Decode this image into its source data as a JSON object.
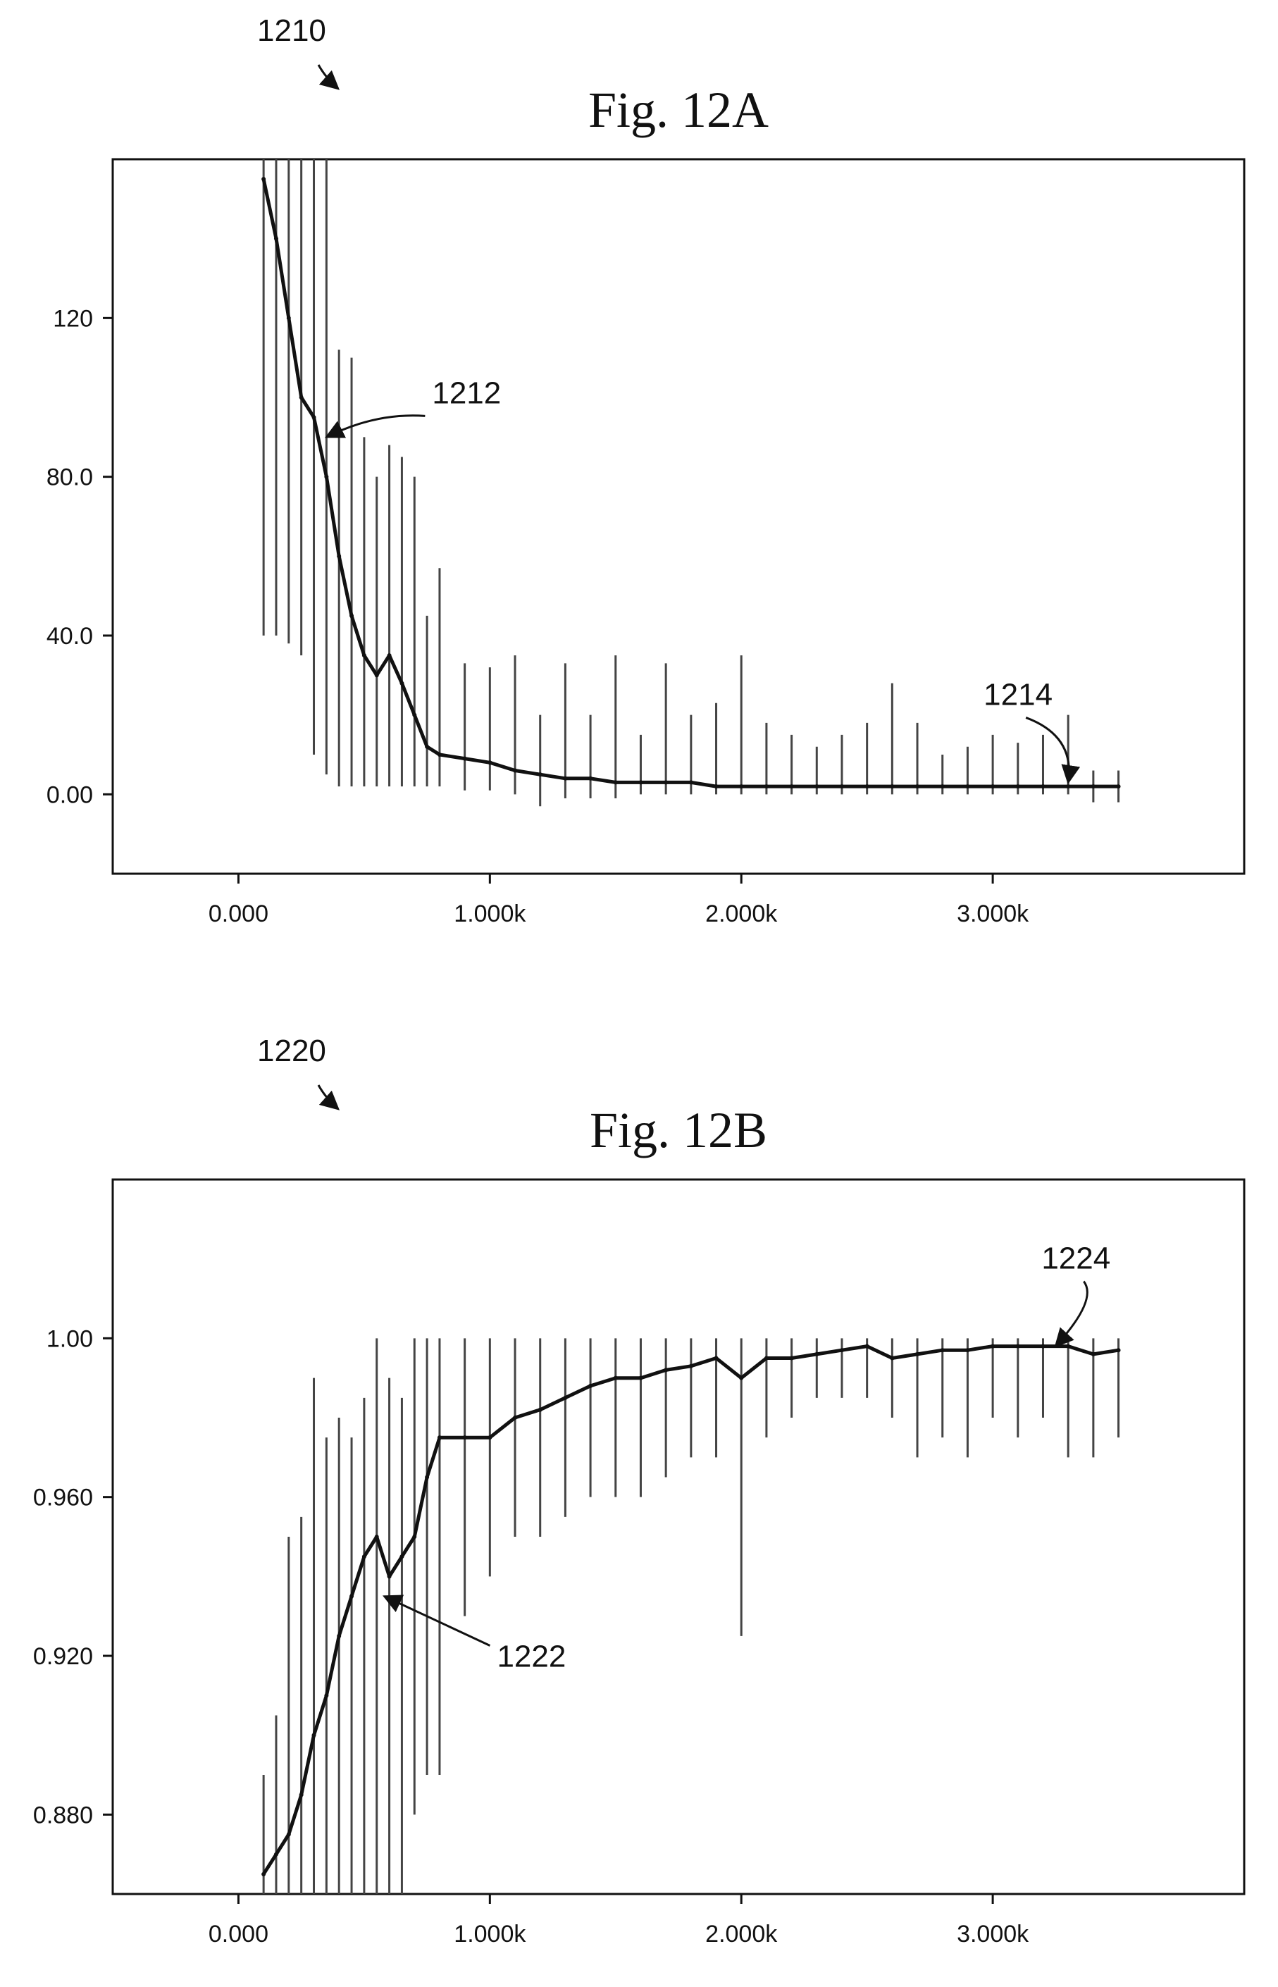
{
  "chart_data": [
    {
      "type": "line",
      "ref_number": "1210",
      "title": "Fig. 12A",
      "xlabel": "",
      "ylabel": "",
      "xlim": [
        -500,
        4000
      ],
      "ylim": [
        -20,
        160
      ],
      "grid": false,
      "legend": "none",
      "x_ticks": [
        {
          "value": 0,
          "label": "0.000"
        },
        {
          "value": 1000,
          "label": "1.000k"
        },
        {
          "value": 2000,
          "label": "2.000k"
        },
        {
          "value": 3000,
          "label": "3.000k"
        }
      ],
      "y_ticks": [
        {
          "value": 0,
          "label": "0.00"
        },
        {
          "value": 40,
          "label": "40.0"
        },
        {
          "value": 80,
          "label": "80.0"
        },
        {
          "value": 120,
          "label": "120"
        }
      ],
      "series": [
        {
          "x": [
            100,
            150,
            200,
            250,
            300,
            350,
            400,
            450,
            500,
            550,
            600,
            650,
            700,
            750,
            800,
            900,
            1000,
            1100,
            1200,
            1300,
            1400,
            1500,
            1600,
            1700,
            1800,
            1900,
            2000,
            2100,
            2200,
            2300,
            2400,
            2500,
            2600,
            2700,
            2800,
            2900,
            3000,
            3100,
            3200,
            3300,
            3400,
            3500
          ],
          "y": [
            155,
            140,
            120,
            100,
            95,
            80,
            60,
            45,
            35,
            30,
            35,
            28,
            20,
            12,
            10,
            9,
            8,
            6,
            5,
            4,
            4,
            3,
            3,
            3,
            3,
            2,
            2,
            2,
            2,
            2,
            2,
            2,
            2,
            2,
            2,
            2,
            2,
            2,
            2,
            2,
            2,
            2
          ],
          "range_low": [
            40,
            40,
            38,
            35,
            10,
            5,
            2,
            2,
            2,
            2,
            2,
            2,
            2,
            2,
            2,
            1,
            1,
            0,
            -3,
            -1,
            -1,
            -1,
            0,
            0,
            0,
            0,
            0,
            0,
            0,
            0,
            0,
            0,
            0,
            0,
            0,
            0,
            0,
            0,
            0,
            0,
            -2,
            -2
          ],
          "range_high": [
            160,
            160,
            160,
            160,
            160,
            160,
            112,
            110,
            90,
            80,
            88,
            85,
            80,
            45,
            57,
            33,
            32,
            35,
            20,
            33,
            20,
            35,
            15,
            33,
            20,
            23,
            35,
            18,
            15,
            12,
            15,
            18,
            28,
            18,
            10,
            12,
            15,
            13,
            15,
            20,
            6,
            6
          ]
        }
      ],
      "annotations": [
        {
          "label": "1212",
          "x": 350,
          "y": 90
        },
        {
          "label": "1214",
          "x": 3300,
          "y": 3
        }
      ]
    },
    {
      "type": "line",
      "ref_number": "1220",
      "title": "Fig. 12B",
      "xlabel": "",
      "ylabel": "",
      "xlim": [
        -500,
        4000
      ],
      "ylim": [
        0.86,
        1.04
      ],
      "grid": false,
      "legend": "none",
      "x_ticks": [
        {
          "value": 0,
          "label": "0.000"
        },
        {
          "value": 1000,
          "label": "1.000k"
        },
        {
          "value": 2000,
          "label": "2.000k"
        },
        {
          "value": 3000,
          "label": "3.000k"
        }
      ],
      "y_ticks": [
        {
          "value": 0.88,
          "label": "0.880"
        },
        {
          "value": 0.92,
          "label": "0.920"
        },
        {
          "value": 0.96,
          "label": "0.960"
        },
        {
          "value": 1.0,
          "label": "1.00"
        }
      ],
      "series": [
        {
          "x": [
            100,
            150,
            200,
            250,
            300,
            350,
            400,
            450,
            500,
            550,
            600,
            650,
            700,
            750,
            800,
            900,
            1000,
            1100,
            1200,
            1300,
            1400,
            1500,
            1600,
            1700,
            1800,
            1900,
            2000,
            2100,
            2200,
            2300,
            2400,
            2500,
            2600,
            2700,
            2800,
            2900,
            3000,
            3100,
            3200,
            3300,
            3400,
            3500
          ],
          "y": [
            0.865,
            0.87,
            0.875,
            0.885,
            0.9,
            0.91,
            0.925,
            0.935,
            0.945,
            0.95,
            0.94,
            0.945,
            0.95,
            0.965,
            0.975,
            0.975,
            0.975,
            0.98,
            0.982,
            0.985,
            0.988,
            0.99,
            0.99,
            0.992,
            0.993,
            0.995,
            0.99,
            0.995,
            0.995,
            0.996,
            0.997,
            0.998,
            0.995,
            0.996,
            0.997,
            0.997,
            0.998,
            0.998,
            0.998,
            0.998,
            0.996,
            0.997
          ],
          "range_low": [
            0.86,
            0.86,
            0.86,
            0.86,
            0.86,
            0.86,
            0.86,
            0.86,
            0.86,
            0.86,
            0.86,
            0.86,
            0.88,
            0.89,
            0.89,
            0.93,
            0.94,
            0.95,
            0.95,
            0.955,
            0.96,
            0.96,
            0.96,
            0.965,
            0.97,
            0.97,
            0.925,
            0.975,
            0.98,
            0.985,
            0.985,
            0.985,
            0.98,
            0.97,
            0.975,
            0.97,
            0.98,
            0.975,
            0.98,
            0.97,
            0.97,
            0.975
          ],
          "range_high": [
            0.89,
            0.905,
            0.95,
            0.955,
            0.99,
            0.975,
            0.98,
            0.975,
            0.985,
            1.0,
            0.99,
            0.985,
            1.0,
            1.0,
            1.0,
            1.0,
            1.0,
            1.0,
            1.0,
            1.0,
            1.0,
            1.0,
            1.0,
            1.0,
            1.0,
            1.0,
            1.0,
            1.0,
            1.0,
            1.0,
            1.0,
            1.0,
            1.0,
            1.0,
            1.0,
            1.0,
            1.0,
            1.0,
            1.0,
            1.0,
            1.0,
            1.0
          ]
        }
      ],
      "annotations": [
        {
          "label": "1222",
          "x": 580,
          "y": 0.935
        },
        {
          "label": "1224",
          "x": 3250,
          "y": 0.998
        }
      ]
    }
  ]
}
